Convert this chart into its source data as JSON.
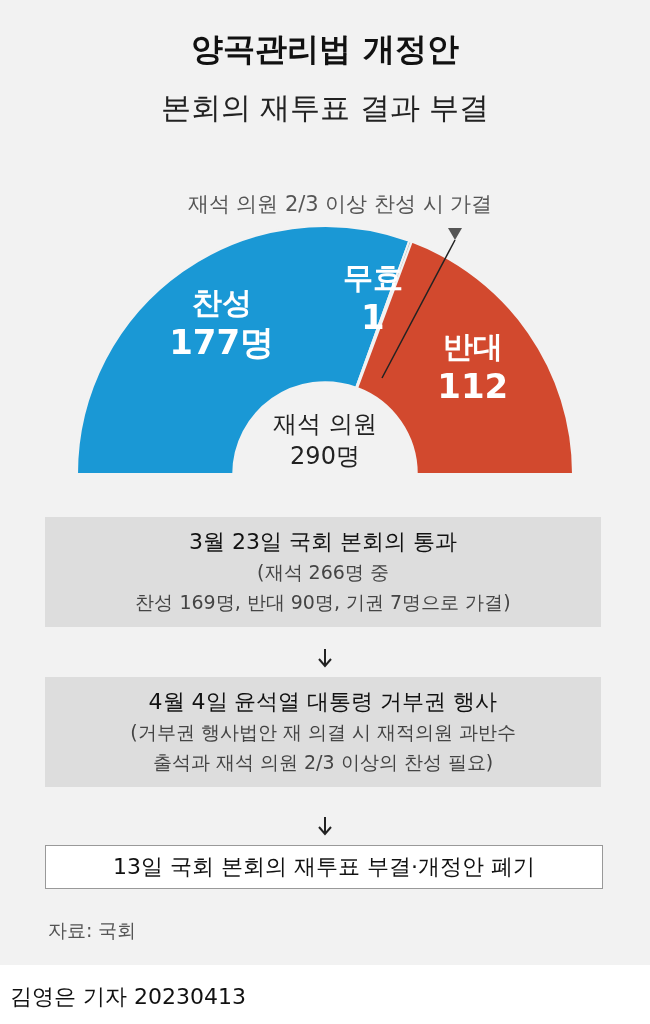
{
  "chart_data": {
    "type": "donut",
    "title": "양곡관리법 개정안",
    "subtitle": "본회의 재투표 결과 부결",
    "categories": [
      "찬성",
      "무효",
      "반대"
    ],
    "values": [
      177,
      1,
      112
    ],
    "colors": [
      "#1a98d5",
      "#b4b4b4",
      "#d2492e"
    ],
    "value_labels": [
      "177명",
      "1",
      "112"
    ],
    "legend": false,
    "annotations": [
      "재석 의원\n290명",
      "재석 의원 2/3 이상 찬성 시 가결",
      "3월 23일 국회 본회의 통과",
      "(재석 266명 중",
      "찬성 169명, 반대 90명, 기권 7명으로 가결)",
      "4월 4일 윤석열 대통령 거부권 행사",
      "(거부권 행사법안 재 의결 시 재적의원 과반수",
      "출석과 재석 의원 2/3 이상의 찬성 필요)",
      "13일 국회 본회의 재투표 부결·개정안 폐기",
      "자료: 국회",
      "김영은 기자  20230413"
    ]
  }
}
